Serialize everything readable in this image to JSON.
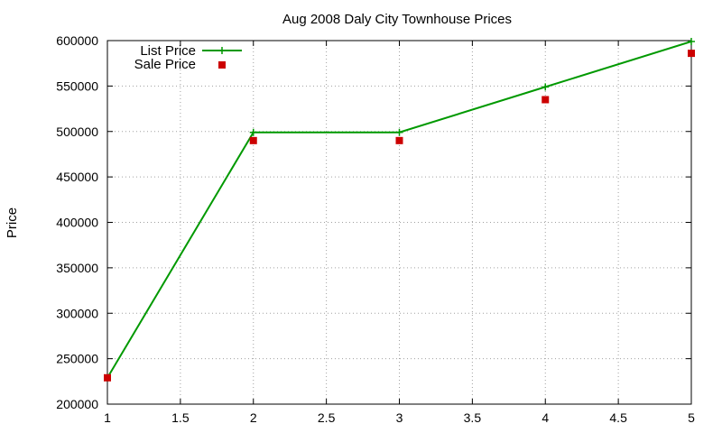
{
  "chart_data": {
    "type": "line",
    "title": "Aug 2008 Daly City Townhouse Prices",
    "xlabel": "",
    "ylabel": "Price",
    "xlim": [
      1,
      5
    ],
    "ylim": [
      200000,
      600000
    ],
    "x_ticks": [
      "1",
      "1.5",
      "2",
      "2.5",
      "3",
      "3.5",
      "4",
      "4.5",
      "5"
    ],
    "y_ticks": [
      "200000",
      "250000",
      "300000",
      "350000",
      "400000",
      "450000",
      "500000",
      "550000",
      "600000"
    ],
    "grid": true,
    "legend_position": "top-left",
    "series": [
      {
        "name": "List Price",
        "style": "linespoints",
        "marker": "plus",
        "color": "#009900",
        "x": [
          1,
          2,
          3,
          4,
          5
        ],
        "y": [
          229000,
          499000,
          499000,
          549000,
          599000
        ]
      },
      {
        "name": "Sale Price",
        "style": "points",
        "marker": "square",
        "color": "#cc0000",
        "x": [
          1,
          2,
          3,
          4,
          5
        ],
        "y": [
          229000,
          490000,
          490000,
          535000,
          586000
        ]
      }
    ]
  }
}
